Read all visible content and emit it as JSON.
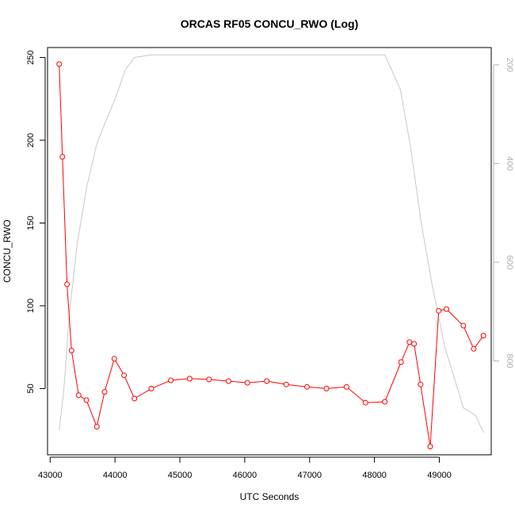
{
  "chart_data": {
    "type": "line",
    "title": "ORCAS RF05 CONCU_RWO (Log)",
    "xlabel": "UTC Seconds",
    "ylabel": "CONCU_RWO",
    "xlim": [
      42960,
      49800
    ],
    "ylim": [
      10,
      256
    ],
    "y2lim": [
      990,
      165
    ],
    "x_ticks": [
      43000,
      44000,
      45000,
      46000,
      47000,
      48000,
      49000
    ],
    "y_ticks": [
      50,
      100,
      150,
      200,
      250
    ],
    "y2_ticks": [
      200,
      400,
      600,
      800
    ],
    "colors": {
      "primary_series": "#ff0000",
      "secondary_series": "#c8c8c8"
    },
    "series": [
      {
        "axis": "left",
        "marker": "open-circle",
        "x": [
          43140,
          43190,
          43260,
          43330,
          43440,
          43560,
          43720,
          43840,
          43990,
          44140,
          44300,
          44560,
          44860,
          45150,
          45450,
          45750,
          46040,
          46340,
          46640,
          46960,
          47260,
          47570,
          47860,
          48160,
          48410,
          48540,
          48610,
          48710,
          48860,
          48990,
          49110,
          49370,
          49530,
          49680
        ],
        "values": [
          246,
          190,
          113,
          73,
          46,
          43,
          27,
          48,
          68,
          58,
          44,
          50,
          55,
          56,
          55.5,
          54.5,
          53.5,
          54.5,
          52.5,
          51,
          50,
          51,
          41.5,
          42,
          66,
          78,
          77,
          52.5,
          15,
          97,
          98,
          88,
          74,
          82
        ]
      },
      {
        "axis": "right",
        "x": [
          43140,
          43210,
          43300,
          43420,
          43560,
          43720,
          43840,
          44000,
          44160,
          44300,
          44560,
          44860,
          48160,
          48400,
          48560,
          48720,
          48880,
          49080,
          49370,
          49560,
          49680
        ],
        "values": [
          940,
          860,
          700,
          560,
          450,
          360,
          320,
          270,
          210,
          185,
          180,
          180,
          180,
          250,
          370,
          520,
          640,
          770,
          895,
          910,
          945
        ]
      }
    ]
  }
}
